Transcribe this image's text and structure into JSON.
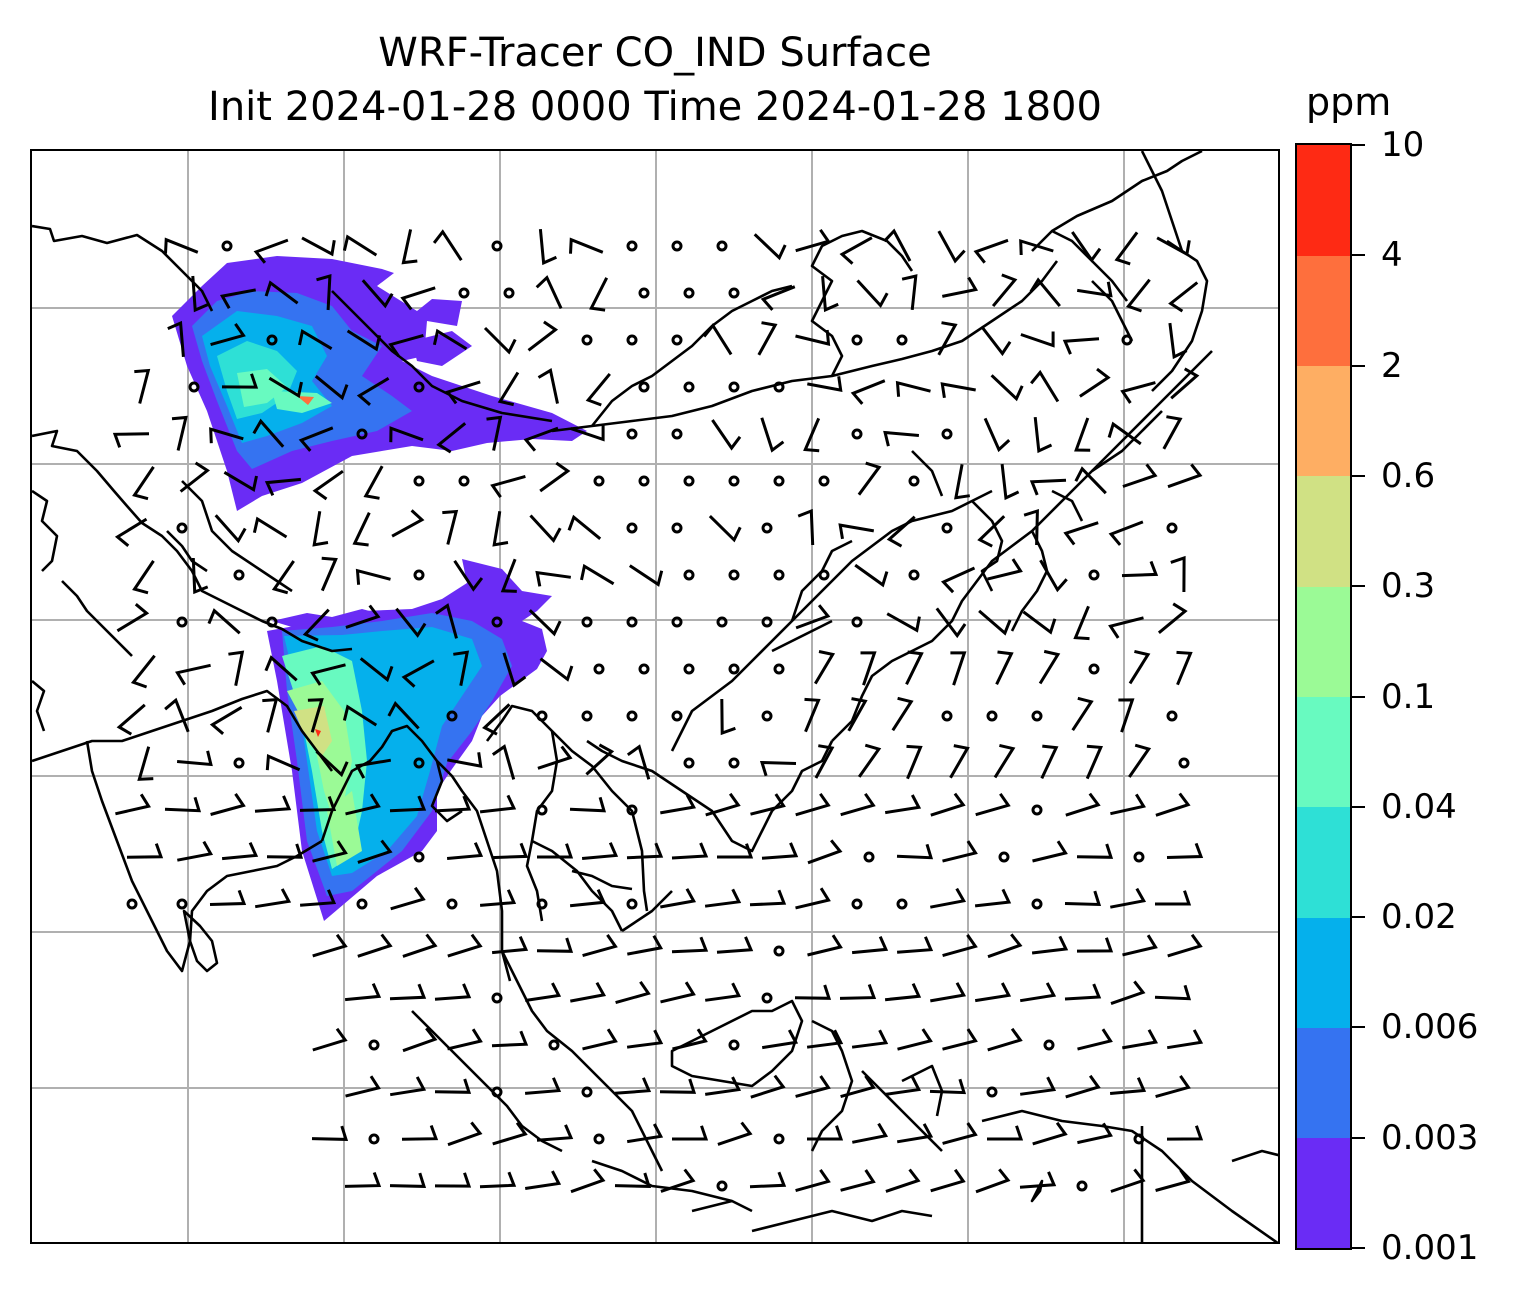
{
  "title_line1": "WRF-Tracer CO_IND Surface",
  "title_line2": "Init 2024-01-28 0000 Time 2024-01-28 1800",
  "colorbar": {
    "unit": "ppm",
    "levels": [
      "0.001",
      "0.003",
      "0.006",
      "0.02",
      "0.04",
      "0.1",
      "0.3",
      "0.6",
      "2",
      "4",
      "10"
    ],
    "colors": [
      "#6a2cf5",
      "#3573f1",
      "#05b0ec",
      "#2ee0d6",
      "#68fac0",
      "#9bfa96",
      "#d0e184",
      "#feae63",
      "#fe6f3d",
      "#fe2a14"
    ]
  },
  "map": {
    "projection": "lat-lon",
    "gridlines": true,
    "coastlines": true,
    "wind_barbs": true,
    "overlay": "CO_IND tracer concentration (filled contours)"
  }
}
